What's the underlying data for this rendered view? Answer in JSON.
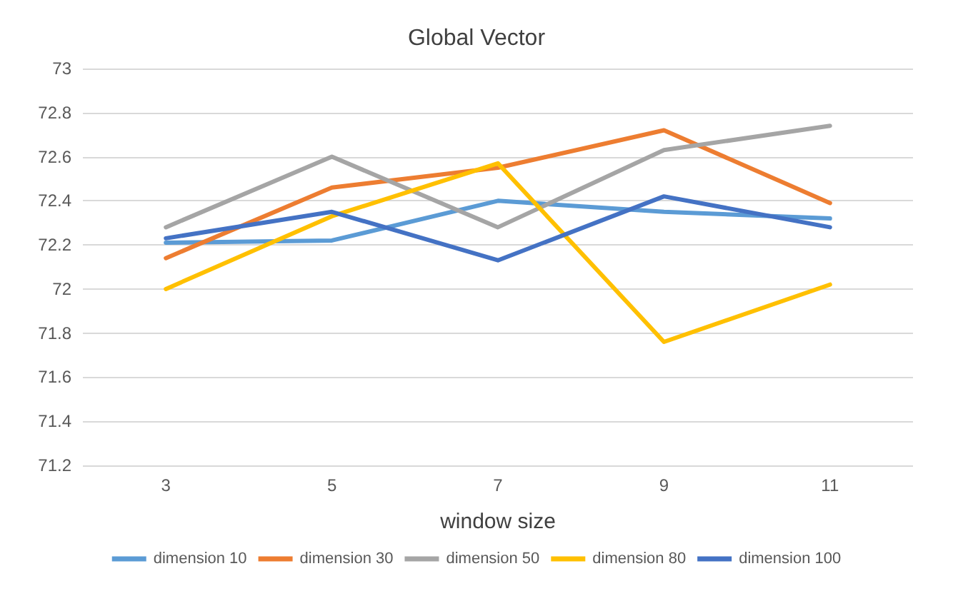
{
  "chart_data": {
    "type": "line",
    "title": "Global Vector",
    "xlabel": "window size",
    "categories": [
      "3",
      "5",
      "7",
      "9",
      "11"
    ],
    "ylim": [
      71.2,
      73
    ],
    "yticks": [
      71.2,
      71.4,
      71.6,
      71.8,
      72,
      72.2,
      72.4,
      72.6,
      72.8,
      73
    ],
    "grid": "y",
    "legend": "bottom",
    "marker": "none",
    "line_style": "solid",
    "series": [
      {
        "name": "dimension 10",
        "color": "#5b9bd5",
        "values": [
          72.21,
          72.22,
          72.4,
          72.35,
          72.32
        ]
      },
      {
        "name": "dimension 30",
        "color": "#ed7d31",
        "values": [
          72.14,
          72.46,
          72.55,
          72.72,
          72.39
        ]
      },
      {
        "name": "dimension 50",
        "color": "#a5a5a5",
        "values": [
          72.28,
          72.6,
          72.28,
          72.63,
          72.74
        ]
      },
      {
        "name": "dimension 80",
        "color": "#ffc000",
        "values": [
          72.0,
          72.33,
          72.57,
          71.76,
          72.02
        ]
      },
      {
        "name": "dimension 100",
        "color": "#4472c4",
        "values": [
          72.23,
          72.35,
          72.13,
          72.42,
          72.28
        ]
      }
    ]
  }
}
